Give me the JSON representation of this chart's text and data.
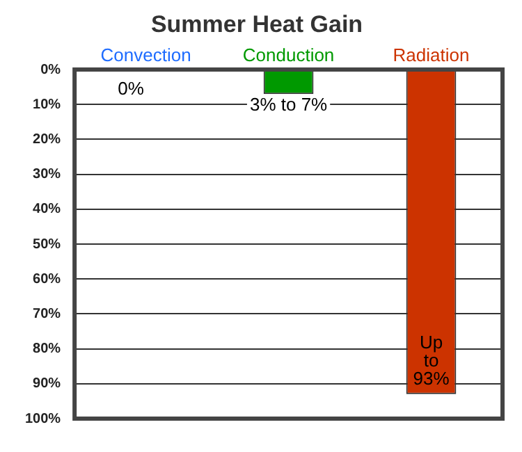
{
  "chart_data": {
    "type": "bar",
    "title": "Summer Heat Gain",
    "categories": [
      "Convection",
      "Conduction",
      "Radiation"
    ],
    "values": [
      0,
      7,
      93
    ],
    "colors": [
      "#1e6cff",
      "#009900",
      "#cc3300"
    ],
    "value_labels": [
      "0%",
      "3% to 7%",
      "Up to 93%"
    ],
    "ylim": [
      100,
      0
    ],
    "yticks": [
      {
        "value": 0,
        "label": "0%"
      },
      {
        "value": 10,
        "label": "10%"
      },
      {
        "value": 20,
        "label": "20%"
      },
      {
        "value": 30,
        "label": "30%"
      },
      {
        "value": 40,
        "label": "40%"
      },
      {
        "value": 50,
        "label": "50%"
      },
      {
        "value": 60,
        "label": "60%"
      },
      {
        "value": 70,
        "label": "70%"
      },
      {
        "value": 80,
        "label": "80%"
      },
      {
        "value": 90,
        "label": "90%"
      },
      {
        "value": 100,
        "label": "100%"
      }
    ],
    "grid": "y",
    "legend": false
  }
}
